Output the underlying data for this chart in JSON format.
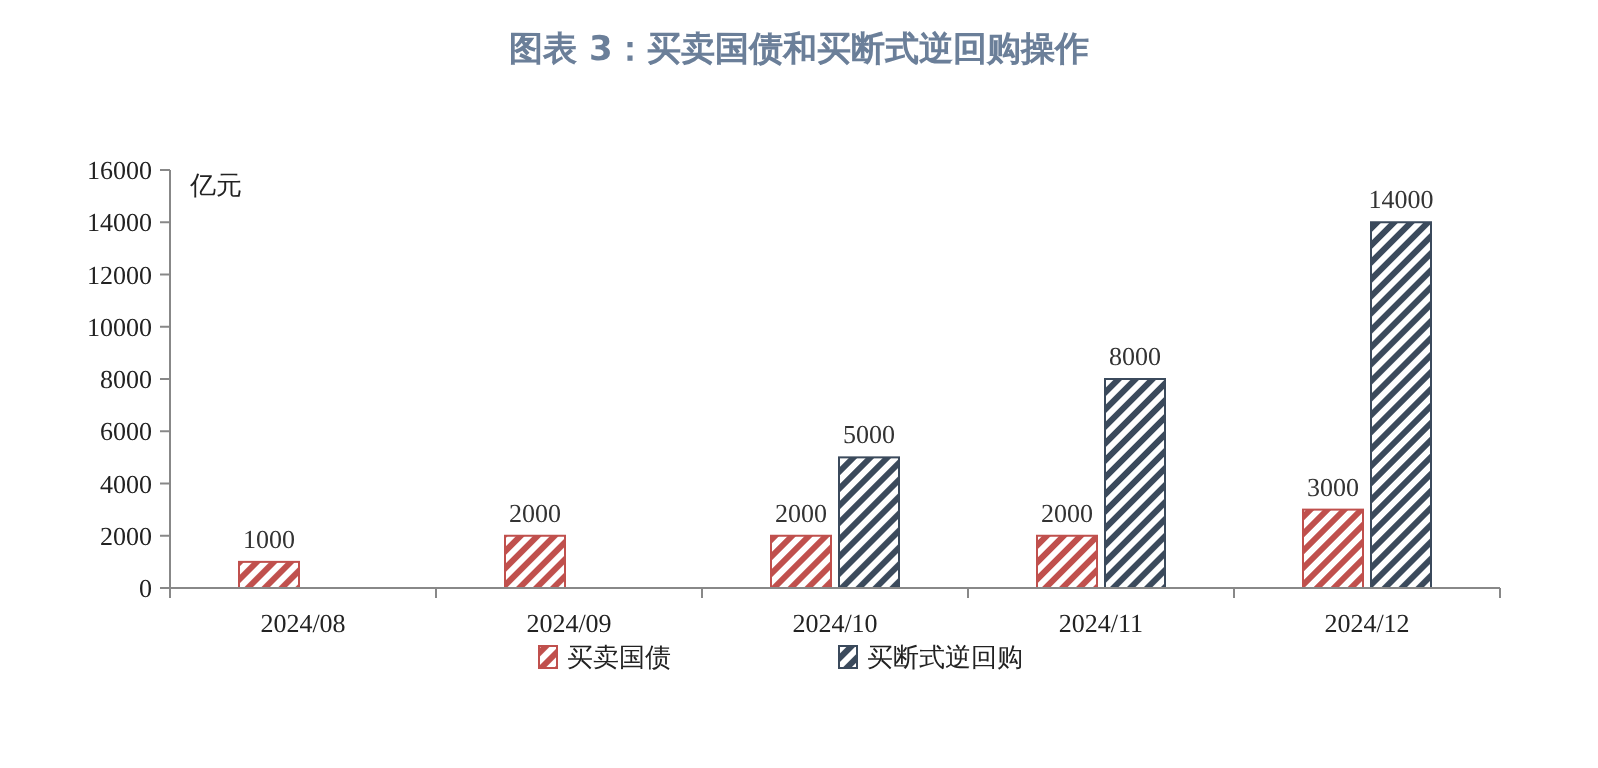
{
  "chart_data": {
    "type": "bar",
    "title": "图表 3：买卖国债和买断式逆回购操作",
    "ylabel": "亿元",
    "categories": [
      "2024/08",
      "2024/09",
      "2024/10",
      "2024/11",
      "2024/12"
    ],
    "series": [
      {
        "name": "买卖国债",
        "color": "#c0504d",
        "values": [
          1000,
          2000,
          2000,
          2000,
          3000
        ]
      },
      {
        "name": "买断式逆回购",
        "color": "#3b4a5c",
        "values": [
          null,
          null,
          5000,
          8000,
          14000
        ]
      }
    ],
    "ylim": [
      0,
      16000
    ],
    "yticks": [
      0,
      2000,
      4000,
      6000,
      8000,
      10000,
      12000,
      14000,
      16000
    ],
    "data_labels": true,
    "legend": "bottom"
  }
}
